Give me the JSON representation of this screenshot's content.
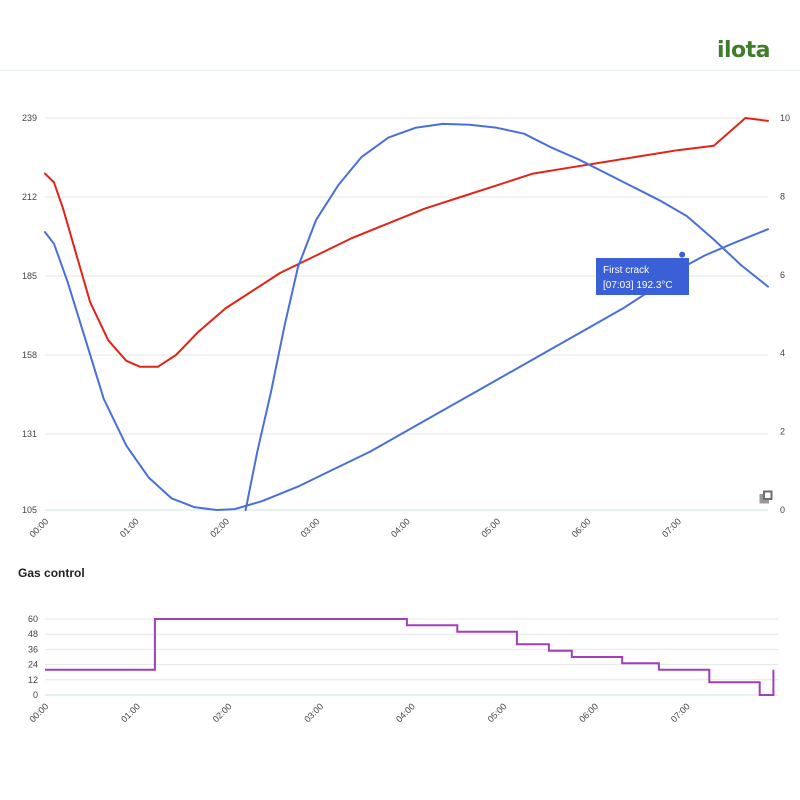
{
  "brand": {
    "logo_text": "ilota"
  },
  "colors": {
    "temperature": "#e2231a",
    "blue_series": "#4a6fd8",
    "gas": "#a03fb8",
    "annotation_bg": "#3a5fd6",
    "grid": "#e6e6e6",
    "axis": "#cfe3de"
  },
  "icons": {
    "expand": "expand-icon"
  },
  "chart_data": [
    {
      "type": "line",
      "title": "",
      "x_unit": "minutes",
      "x_ticks": [
        "00:00",
        "01:00",
        "02:00",
        "03:00",
        "04:00",
        "05:00",
        "06:00",
        "07:00"
      ],
      "xlim": [
        0,
        8
      ],
      "y_left_ticks": [
        105,
        131,
        158,
        185,
        212,
        239
      ],
      "ylim_left": [
        105,
        239
      ],
      "y_right_ticks": [
        0,
        2,
        4,
        6,
        8,
        10
      ],
      "ylim_right": [
        0,
        10
      ],
      "grid": true,
      "series": [
        {
          "axis": "left",
          "points": [
            [
              0,
              220
            ],
            [
              0.1,
              217
            ],
            [
              0.2,
              208
            ],
            [
              0.35,
              192
            ],
            [
              0.5,
              176
            ],
            [
              0.7,
              163
            ],
            [
              0.9,
              156
            ],
            [
              1.05,
              154
            ],
            [
              1.25,
              154
            ],
            [
              1.45,
              158
            ],
            [
              1.7,
              166
            ],
            [
              2.0,
              174
            ],
            [
              2.3,
              180
            ],
            [
              2.6,
              186
            ],
            [
              3.0,
              192
            ],
            [
              3.4,
              198
            ],
            [
              3.8,
              203
            ],
            [
              4.2,
              208
            ],
            [
              4.6,
              212
            ],
            [
              5.0,
              216
            ],
            [
              5.4,
              220
            ],
            [
              5.8,
              222
            ],
            [
              6.2,
              224
            ],
            [
              6.6,
              226
            ],
            [
              7.0,
              228
            ],
            [
              7.4,
              229.5
            ],
            [
              7.75,
              239
            ],
            [
              8.0,
              238
            ]
          ]
        },
        {
          "axis": "left",
          "points": [
            [
              0,
              200
            ],
            [
              0.1,
              196
            ],
            [
              0.25,
              183
            ],
            [
              0.45,
              163
            ],
            [
              0.65,
              143
            ],
            [
              0.9,
              127
            ],
            [
              1.15,
              116
            ],
            [
              1.4,
              109
            ],
            [
              1.65,
              106
            ],
            [
              1.9,
              105
            ],
            [
              2.1,
              105.3
            ],
            [
              2.4,
              108
            ],
            [
              2.8,
              113
            ],
            [
              3.2,
              119
            ],
            [
              3.6,
              125
            ],
            [
              4.0,
              132
            ],
            [
              4.4,
              139
            ],
            [
              4.8,
              146
            ],
            [
              5.2,
              153
            ],
            [
              5.6,
              160
            ],
            [
              6.0,
              167
            ],
            [
              6.4,
              174
            ],
            [
              6.7,
              180
            ],
            [
              7.0,
              187
            ],
            [
              7.3,
              192
            ],
            [
              7.6,
              196
            ],
            [
              8.0,
              201
            ]
          ]
        },
        {
          "axis": "right",
          "points": [
            [
              2.22,
              0
            ],
            [
              2.35,
              1.5
            ],
            [
              2.5,
              3
            ],
            [
              2.65,
              4.7
            ],
            [
              2.8,
              6.2
            ],
            [
              3.0,
              7.4
            ],
            [
              3.25,
              8.3
            ],
            [
              3.5,
              9.0
            ],
            [
              3.8,
              9.5
            ],
            [
              4.1,
              9.75
            ],
            [
              4.4,
              9.85
            ],
            [
              4.7,
              9.83
            ],
            [
              5.0,
              9.75
            ],
            [
              5.3,
              9.6
            ],
            [
              5.6,
              9.25
            ],
            [
              5.9,
              8.95
            ],
            [
              6.2,
              8.6
            ],
            [
              6.5,
              8.25
            ],
            [
              6.8,
              7.9
            ],
            [
              7.1,
              7.5
            ],
            [
              7.4,
              6.9
            ],
            [
              7.7,
              6.25
            ],
            [
              8.0,
              5.7
            ]
          ]
        }
      ],
      "annotations": [
        {
          "x": 7.05,
          "y": 192.3,
          "text_line1": "First crack",
          "text_line2": "[07:03] 192.3°C"
        }
      ]
    },
    {
      "type": "line",
      "title": "Gas control",
      "x_ticks": [
        "00:00",
        "01:00",
        "02:00",
        "03:00",
        "04:00",
        "05:00",
        "06:00",
        "07:00"
      ],
      "xlim": [
        0,
        8
      ],
      "y_ticks": [
        0,
        12,
        24,
        36,
        48,
        60
      ],
      "ylim": [
        0,
        60
      ],
      "grid": true,
      "series": [
        {
          "step": true,
          "points": [
            [
              0,
              20
            ],
            [
              1.2,
              20
            ],
            [
              1.2,
              60
            ],
            [
              3.95,
              60
            ],
            [
              3.95,
              55
            ],
            [
              4.5,
              55
            ],
            [
              4.5,
              50
            ],
            [
              5.15,
              50
            ],
            [
              5.15,
              40
            ],
            [
              5.5,
              40
            ],
            [
              5.5,
              35
            ],
            [
              5.75,
              35
            ],
            [
              5.75,
              30
            ],
            [
              6.3,
              30
            ],
            [
              6.3,
              25
            ],
            [
              6.7,
              25
            ],
            [
              6.7,
              20
            ],
            [
              7.25,
              20
            ],
            [
              7.25,
              10
            ],
            [
              7.8,
              10
            ],
            [
              7.8,
              0
            ],
            [
              7.95,
              0
            ],
            [
              7.95,
              20
            ]
          ]
        }
      ]
    }
  ]
}
